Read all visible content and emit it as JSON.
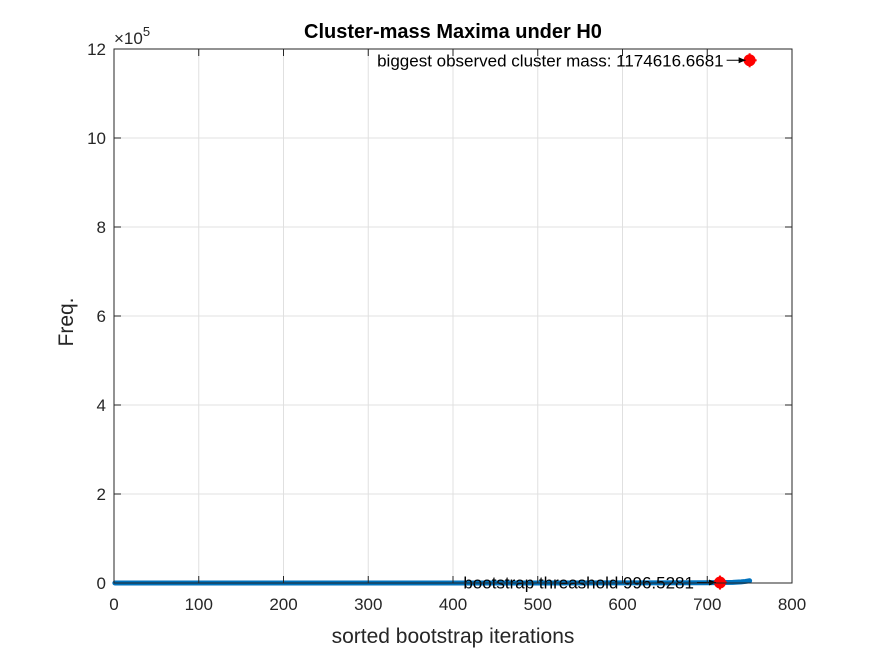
{
  "chart_data": {
    "type": "line",
    "title": "Cluster-mass Maxima under H0",
    "xlabel": "sorted bootstrap iterations",
    "ylabel": "Freq.",
    "xlim": [
      0,
      800
    ],
    "ylim": [
      0,
      1200000
    ],
    "xticks": [
      0,
      100,
      200,
      300,
      400,
      500,
      600,
      700,
      800
    ],
    "yticks": [
      0,
      200000,
      400000,
      600000,
      800000,
      1000000,
      1200000
    ],
    "ytick_labels": [
      "0",
      "2",
      "4",
      "6",
      "8",
      "10",
      "12"
    ],
    "y_exponent_prefix": "×10",
    "y_exponent_power": "5",
    "grid": true,
    "series": [
      {
        "x": [
          1,
          100,
          200,
          300,
          400,
          500,
          600,
          700,
          715,
          730,
          740,
          745,
          750
        ],
        "values": [
          0,
          10,
          25,
          45,
          70,
          110,
          180,
          420,
          996.5281,
          1500,
          2500,
          3500,
          5000
        ],
        "color": "#0072BD"
      }
    ],
    "markers": [
      {
        "x": 750,
        "y": 1174616.6681,
        "color": "#FF0000"
      },
      {
        "x": 715,
        "y": 996.5281,
        "color": "#FF0000"
      }
    ],
    "annotations": [
      {
        "text": "biggest observed cluster mass: 1174616.6681",
        "x": 750,
        "y": 1174616.6681
      },
      {
        "text": "bootstrap threashold 996.5281",
        "x": 715,
        "y": 996.5281
      }
    ]
  }
}
